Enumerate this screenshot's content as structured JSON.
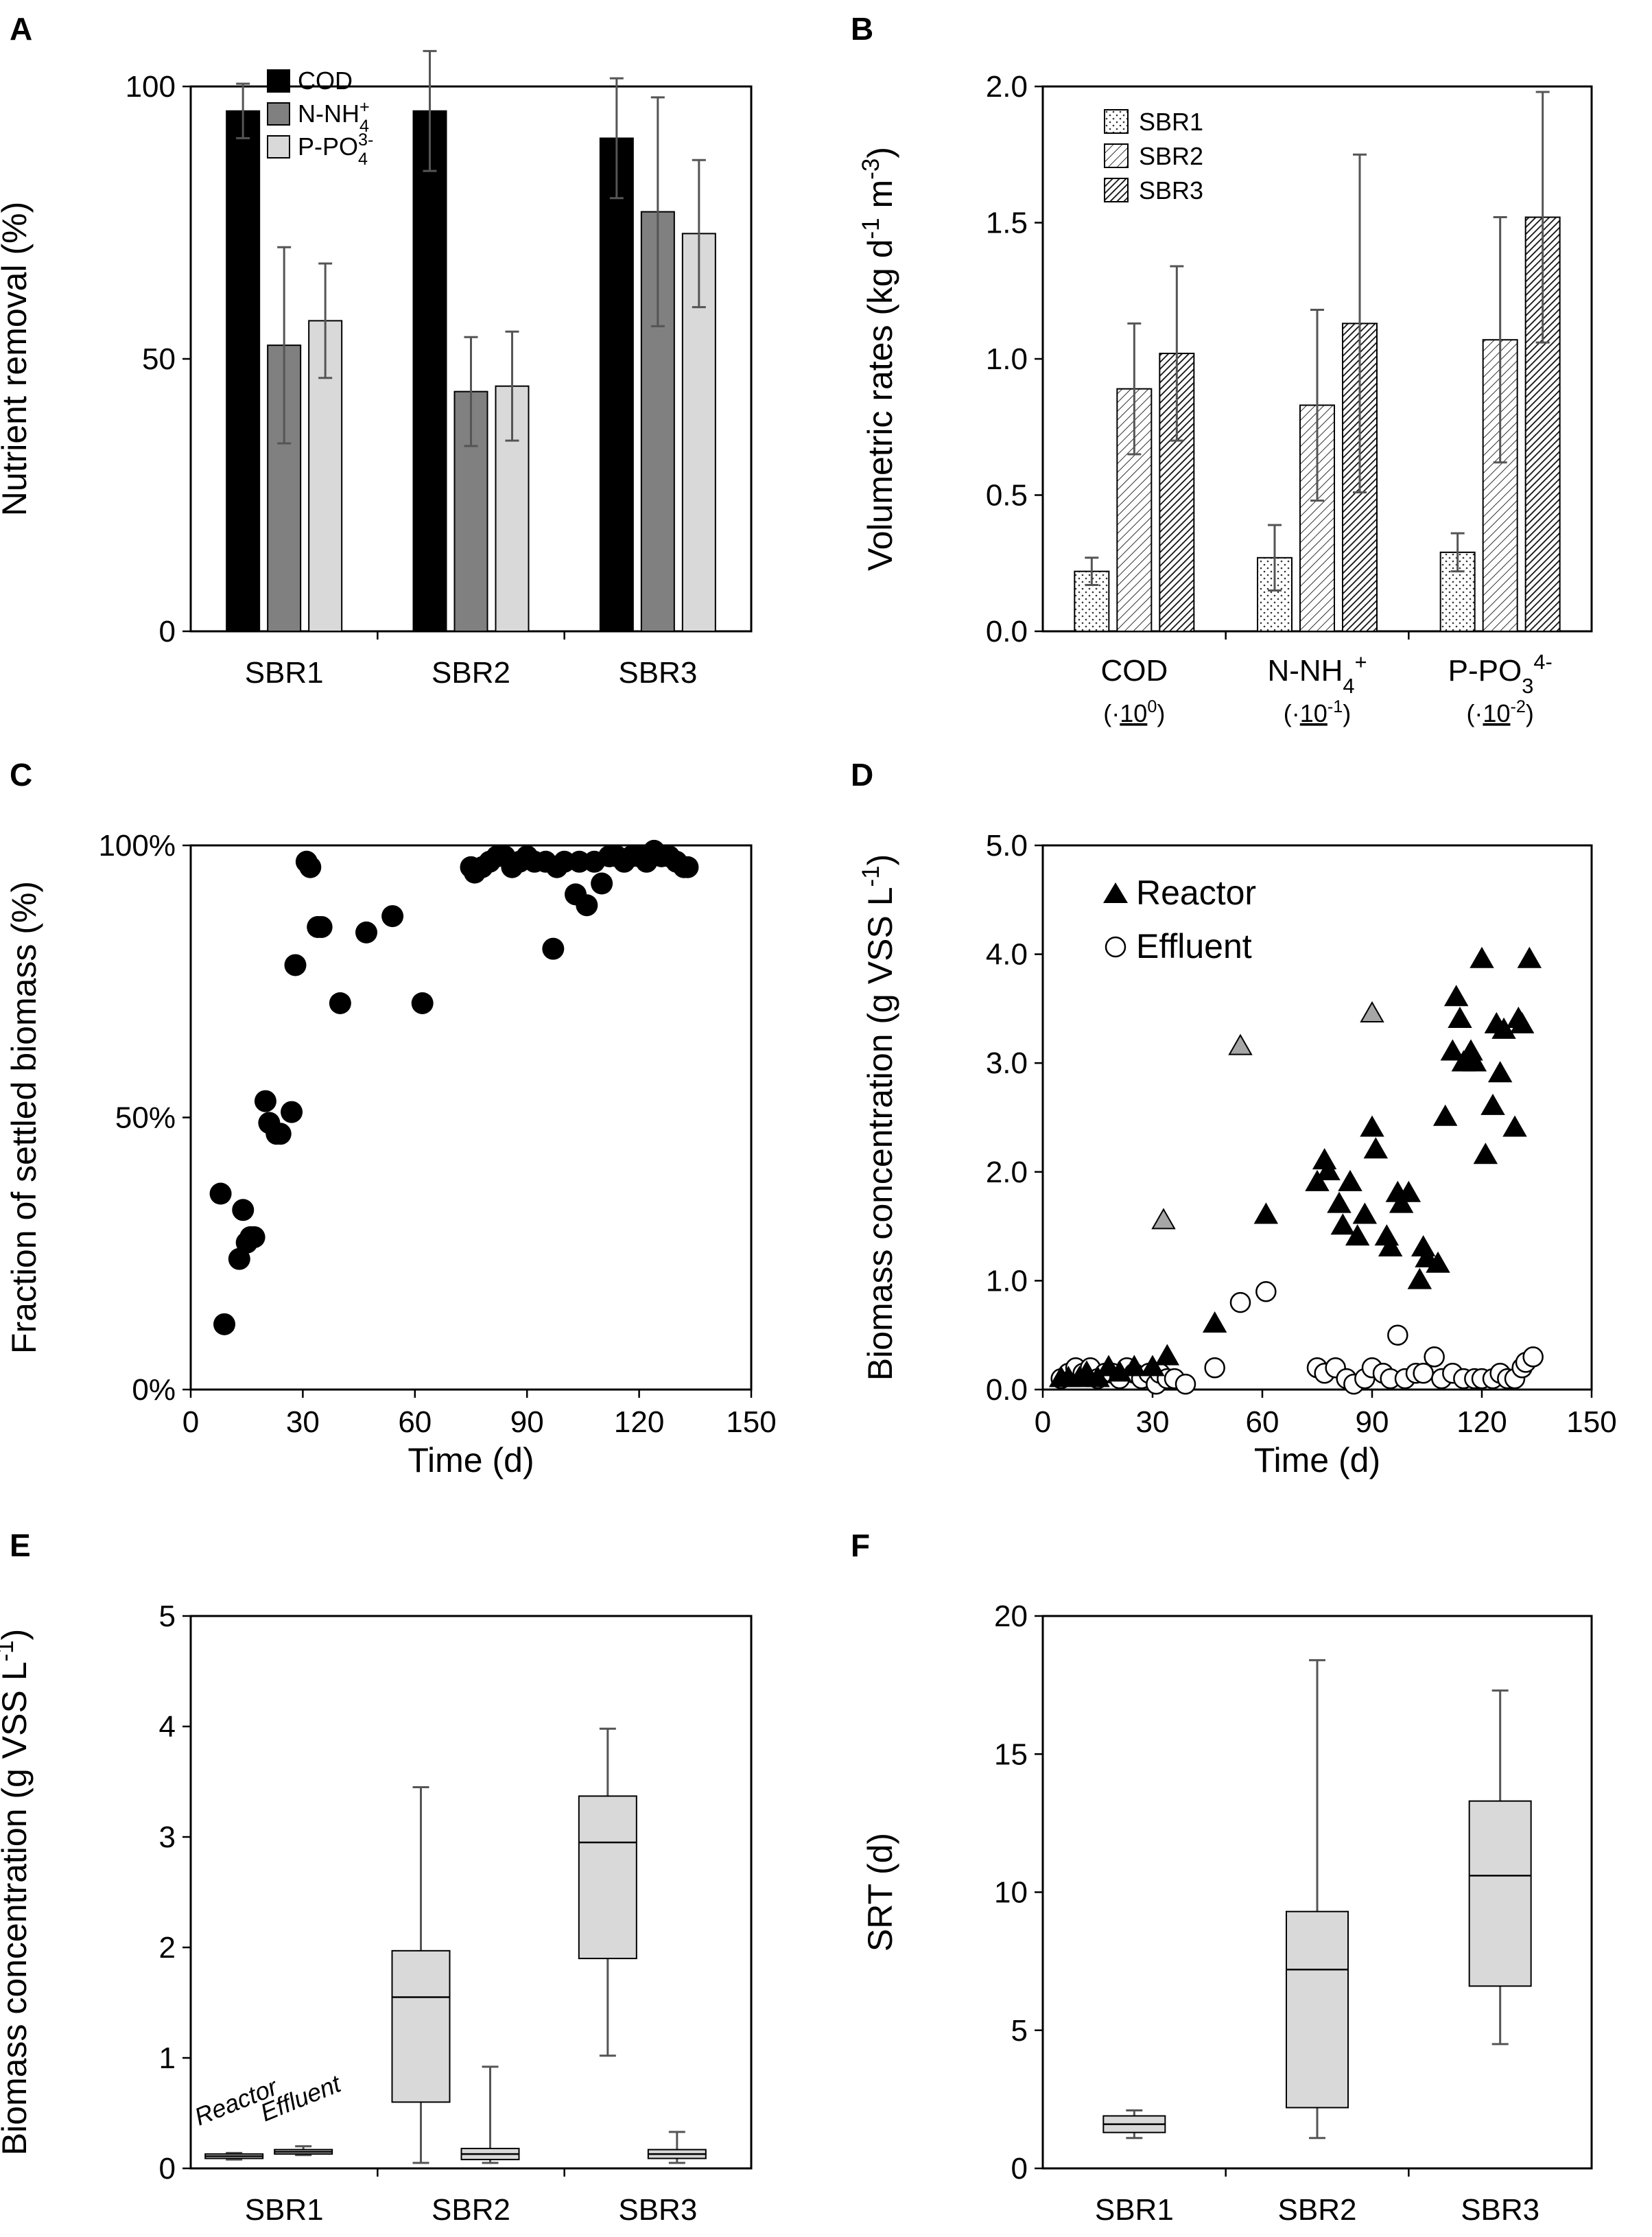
{
  "chart_data": [
    {
      "panel": "A",
      "type": "bar",
      "ylabel": "Nutrient removal (%)",
      "ylim": [
        0,
        100
      ],
      "yticks": [
        "0",
        "50",
        "100"
      ],
      "categories": [
        "SBR1",
        "SBR2",
        "SBR3"
      ],
      "legend": [
        "COD",
        "N-NH",
        "P-PO"
      ],
      "legend_sub": [
        "",
        "4",
        "4"
      ],
      "legend_sup": [
        "",
        "+",
        "3-"
      ],
      "series": [
        {
          "name": "COD",
          "color": "#000000",
          "values": [
            95.5,
            95.5,
            90.5
          ],
          "err": [
            5,
            11,
            11
          ]
        },
        {
          "name": "N-NH4+",
          "color": "#808080",
          "values": [
            52.5,
            44,
            77
          ],
          "err": [
            18,
            10,
            21
          ]
        },
        {
          "name": "P-PO43-",
          "color": "#d9d9d9",
          "values": [
            57,
            45,
            73
          ],
          "err": [
            10.5,
            10,
            13.5
          ]
        }
      ]
    },
    {
      "panel": "B",
      "type": "bar",
      "ylabel": "Volumetric rates (kg d",
      "ylabel_sup1": "-1",
      "ylabel_mid": " m",
      "ylabel_sup2": "-3",
      "ylabel_end": ")",
      "ylim": [
        0,
        2
      ],
      "yticks": [
        "0.0",
        "0.5",
        "1.0",
        "1.5",
        "2.0"
      ],
      "categories": [
        "COD",
        "N-NH",
        "P-PO"
      ],
      "cat_sub": [
        "",
        "4",
        "3"
      ],
      "cat_sup": [
        "",
        "+",
        "4-"
      ],
      "scale_prefix": "(·",
      "scale_base": "10",
      "scale_exp": [
        "0",
        "-1",
        "-2"
      ],
      "scale_suffix": ")",
      "legend": [
        "SBR1",
        "SBR2",
        "SBR3"
      ],
      "series": [
        {
          "name": "SBR1",
          "pattern": "dots",
          "values": [
            0.22,
            0.27,
            0.29
          ],
          "err": [
            0.05,
            0.12,
            0.07
          ]
        },
        {
          "name": "SBR2",
          "pattern": "hatch-light",
          "values": [
            0.89,
            0.83,
            1.07
          ],
          "err": [
            0.24,
            0.35,
            0.45
          ]
        },
        {
          "name": "SBR3",
          "pattern": "hatch-dense",
          "values": [
            1.02,
            1.13,
            1.52
          ],
          "err": [
            0.32,
            0.62,
            0.46
          ]
        }
      ]
    },
    {
      "panel": "C",
      "type": "scatter",
      "xlabel": "Time (d)",
      "ylabel": "Fraction of settled biomass (%)",
      "xlim": [
        0,
        150
      ],
      "ylim": [
        0,
        100
      ],
      "xticks": [
        "0",
        "30",
        "60",
        "90",
        "120",
        "150"
      ],
      "yticks": [
        "0%",
        "50%",
        "100%"
      ],
      "series": [
        {
          "name": "settled",
          "x": [
            8,
            9,
            13,
            14,
            15,
            16,
            17,
            20,
            21,
            23,
            24,
            27,
            28,
            31,
            32,
            34,
            35,
            40,
            47,
            54,
            62,
            75,
            76,
            78,
            80,
            82,
            84,
            86,
            88,
            90,
            92,
            95,
            97,
            98,
            100,
            103,
            104,
            106,
            108,
            110,
            112,
            114,
            116,
            118,
            120,
            122,
            124,
            126,
            128,
            130,
            132,
            133
          ],
          "y": [
            36,
            12,
            24,
            33,
            27,
            28,
            28,
            53,
            49,
            47,
            47,
            51,
            78,
            97,
            96,
            85,
            85,
            71,
            84,
            87,
            71,
            96,
            95,
            96,
            97,
            98,
            98,
            96,
            97,
            98,
            97,
            97,
            81,
            96,
            97,
            91,
            97,
            89,
            97,
            93,
            98,
            98,
            97,
            98,
            98,
            97,
            99,
            98,
            98,
            97,
            96,
            96
          ]
        }
      ]
    },
    {
      "panel": "D",
      "type": "scatter",
      "xlabel": "Time (d)",
      "ylabel": "Biomass concentration (g VSS L",
      "ylabel_sup": "-1",
      "ylabel_end": ")",
      "xlim": [
        0,
        150
      ],
      "ylim": [
        0,
        5
      ],
      "xticks": [
        "0",
        "30",
        "60",
        "90",
        "120",
        "150"
      ],
      "yticks": [
        "0.0",
        "1.0",
        "2.0",
        "3.0",
        "4.0",
        "5.0"
      ],
      "legend": [
        "Reactor",
        "Effluent"
      ],
      "series": [
        {
          "name": "Reactor",
          "marker": "triangle",
          "color": "#000000",
          "x": [
            5,
            7,
            10,
            12,
            15,
            18,
            21,
            25,
            30,
            34,
            47,
            61,
            75,
            77,
            78,
            81,
            82,
            84,
            86,
            88,
            90,
            91,
            94,
            95,
            97,
            98,
            100,
            103,
            104,
            105,
            108,
            110,
            112,
            113,
            114,
            115,
            117,
            118,
            120,
            121,
            123,
            124,
            125,
            126,
            129,
            130,
            131,
            133
          ],
          "y": [
            0.1,
            0.1,
            0.1,
            0.15,
            0.1,
            0.2,
            0.15,
            0.2,
            0.2,
            0.3,
            0.6,
            1.6,
            1.9,
            2.1,
            2.0,
            1.7,
            1.5,
            1.9,
            1.4,
            1.6,
            2.4,
            2.2,
            1.4,
            1.3,
            1.8,
            1.7,
            1.8,
            1.0,
            1.3,
            1.2,
            1.15,
            2.5,
            3.1,
            3.6,
            3.4,
            3.0,
            3.1,
            3.0,
            3.95,
            2.15,
            2.6,
            3.35,
            2.9,
            3.3,
            2.4,
            3.4,
            3.35,
            3.95
          ]
        },
        {
          "name": "Reactor-gray",
          "marker": "triangle",
          "color": "#a6a6a6",
          "x": [
            33,
            54,
            90
          ],
          "y": [
            1.55,
            3.15,
            3.45
          ]
        },
        {
          "name": "Effluent",
          "marker": "circle",
          "color": "#ffffff",
          "x": [
            5,
            7,
            9,
            11,
            13,
            15,
            17,
            19,
            21,
            23,
            25,
            27,
            29,
            31,
            32,
            34,
            36,
            39,
            47,
            54,
            61,
            75,
            77,
            80,
            83,
            85,
            88,
            90,
            93,
            95,
            97,
            99,
            102,
            104,
            107,
            109,
            112,
            115,
            118,
            120,
            123,
            125,
            127,
            129,
            131,
            132,
            134
          ],
          "y": [
            0.1,
            0.15,
            0.2,
            0.15,
            0.2,
            0.1,
            0.15,
            0.15,
            0.1,
            0.2,
            0.15,
            0.1,
            0.15,
            0.05,
            0.15,
            0.1,
            0.1,
            0.05,
            0.2,
            0.8,
            0.9,
            0.2,
            0.15,
            0.2,
            0.1,
            0.05,
            0.1,
            0.2,
            0.15,
            0.1,
            0.5,
            0.1,
            0.15,
            0.15,
            0.3,
            0.1,
            0.15,
            0.1,
            0.1,
            0.1,
            0.1,
            0.15,
            0.1,
            0.1,
            0.2,
            0.25,
            0.3
          ]
        }
      ]
    },
    {
      "panel": "E",
      "type": "box",
      "ylabel": "Biomass concentration (g VSS L",
      "ylabel_sup": "-1",
      "ylabel_end": ")",
      "ylim": [
        0,
        5
      ],
      "yticks": [
        "0",
        "1",
        "2",
        "3",
        "4",
        "5"
      ],
      "categories": [
        "SBR1",
        "SBR2",
        "SBR3"
      ],
      "annotations": [
        "Reactor",
        "Effluent"
      ],
      "boxes": [
        {
          "group": "SBR1",
          "kind": "Reactor",
          "min": 0.08,
          "q1": 0.09,
          "median": 0.11,
          "q3": 0.13,
          "max": 0.14
        },
        {
          "group": "SBR1",
          "kind": "Effluent",
          "min": 0.12,
          "q1": 0.13,
          "median": 0.15,
          "q3": 0.17,
          "max": 0.2
        },
        {
          "group": "SBR2",
          "kind": "Reactor",
          "min": 0.05,
          "q1": 0.6,
          "median": 1.55,
          "q3": 1.97,
          "max": 3.45
        },
        {
          "group": "SBR2",
          "kind": "Effluent",
          "min": 0.05,
          "q1": 0.08,
          "median": 0.13,
          "q3": 0.18,
          "max": 0.92
        },
        {
          "group": "SBR3",
          "kind": "Reactor",
          "min": 1.02,
          "q1": 1.9,
          "median": 2.95,
          "q3": 3.37,
          "max": 3.98
        },
        {
          "group": "SBR3",
          "kind": "Effluent",
          "min": 0.05,
          "q1": 0.09,
          "median": 0.13,
          "q3": 0.17,
          "max": 0.33
        }
      ]
    },
    {
      "panel": "F",
      "type": "box",
      "ylabel": "SRT (d)",
      "ylim": [
        0,
        20
      ],
      "yticks": [
        "0",
        "5",
        "10",
        "15",
        "20"
      ],
      "categories": [
        "SBR1",
        "SBR2",
        "SBR3"
      ],
      "boxes": [
        {
          "group": "SBR1",
          "min": 1.1,
          "q1": 1.3,
          "median": 1.6,
          "q3": 1.9,
          "max": 2.1
        },
        {
          "group": "SBR2",
          "min": 1.1,
          "q1": 2.2,
          "median": 7.2,
          "q3": 9.3,
          "max": 18.4
        },
        {
          "group": "SBR3",
          "min": 4.5,
          "q1": 6.6,
          "median": 10.6,
          "q3": 13.3,
          "max": 17.3
        }
      ]
    }
  ]
}
